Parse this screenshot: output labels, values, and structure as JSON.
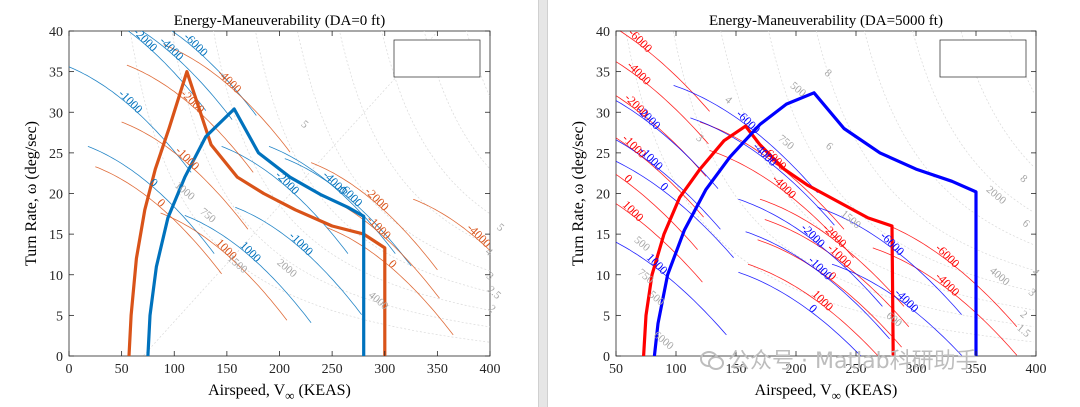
{
  "chart_data": [
    {
      "type": "line",
      "title": "Energy-Maneuverability (DA=0 ft)",
      "xlabel": "Airspeed, V",
      "xlabel_sub": "∞",
      "xlabel_unit": " (KEAS)",
      "ylabel": "Turn Rate, ω (deg/sec)",
      "xlim": [
        0,
        400
      ],
      "ylim": [
        0,
        40
      ],
      "xticks": [
        0,
        50,
        100,
        150,
        200,
        250,
        300,
        350,
        400
      ],
      "yticks": [
        0,
        5,
        10,
        15,
        20,
        25,
        30,
        35,
        40
      ],
      "legend": "top-right (empty box)",
      "envelopes": [
        {
          "name": "envelope-orange",
          "color": "#d95319",
          "points": [
            [
              57,
              0
            ],
            [
              59,
              5
            ],
            [
              64,
              12
            ],
            [
              72,
              18
            ],
            [
              82,
              23
            ],
            [
              95,
              28
            ],
            [
              112,
              35
            ],
            [
              135,
              26
            ],
            [
              160,
              22
            ],
            [
              185,
              20
            ],
            [
              215,
              18
            ],
            [
              250,
              16
            ],
            [
              280,
              15
            ],
            [
              300,
              13.3
            ],
            [
              300,
              0
            ]
          ]
        },
        {
          "name": "envelope-blue",
          "color": "#0072bd",
          "points": [
            [
              75,
              0
            ],
            [
              77,
              5
            ],
            [
              83,
              11
            ],
            [
              94,
              17
            ],
            [
              110,
              22
            ],
            [
              130,
              27
            ],
            [
              157,
              30.4
            ],
            [
              180,
              25
            ],
            [
              210,
              22
            ],
            [
              240,
              19.8
            ],
            [
              265,
              18.3
            ],
            [
              280,
              17.2
            ],
            [
              280,
              0
            ]
          ]
        }
      ],
      "ps_contours": [
        {
          "color": "#0072bd",
          "label": "-2000",
          "lx": 70,
          "ly": 38.6
        },
        {
          "color": "#0072bd",
          "label": "-4000",
          "lx": 95,
          "ly": 37.5
        },
        {
          "color": "#0072bd",
          "label": "-6000",
          "lx": 118,
          "ly": 38
        },
        {
          "color": "#0072bd",
          "label": "-1000",
          "lx": 56,
          "ly": 31
        },
        {
          "color": "#0072bd",
          "label": "0",
          "lx": 78,
          "ly": 21
        },
        {
          "color": "#0072bd",
          "label": "-2000",
          "lx": 205,
          "ly": 21
        },
        {
          "color": "#0072bd",
          "label": "-4000",
          "lx": 250,
          "ly": 21
        },
        {
          "color": "#0072bd",
          "label": "-6000",
          "lx": 265,
          "ly": 19.5
        },
        {
          "color": "#0072bd",
          "label": "-1000",
          "lx": 218,
          "ly": 13.5
        },
        {
          "color": "#0072bd",
          "label": "1000",
          "lx": 170,
          "ly": 12.5
        },
        {
          "color": "#d95319",
          "label": "-2000",
          "lx": 115,
          "ly": 31
        },
        {
          "color": "#d95319",
          "label": "-4000",
          "lx": 150,
          "ly": 33.5
        },
        {
          "color": "#d95319",
          "label": "-1000",
          "lx": 110,
          "ly": 24
        },
        {
          "color": "#d95319",
          "label": "0",
          "lx": 85,
          "ly": 18.5
        },
        {
          "color": "#d95319",
          "label": "-2000",
          "lx": 290,
          "ly": 19
        },
        {
          "color": "#d95319",
          "label": "-1000",
          "lx": 292,
          "ly": 15.5
        },
        {
          "color": "#d95319",
          "label": "-4000",
          "lx": 387,
          "ly": 14.5
        },
        {
          "color": "#d95319",
          "label": "1000",
          "lx": 147,
          "ly": 12.8
        },
        {
          "color": "#d95319",
          "label": "0",
          "lx": 305,
          "ly": 11
        }
      ],
      "gray_labels": [
        {
          "label": "5",
          "lx": 222,
          "ly": 28.2
        },
        {
          "label": "750",
          "lx": 130,
          "ly": 17
        },
        {
          "label": "1500",
          "lx": 158,
          "ly": 11
        },
        {
          "label": "2000",
          "lx": 205,
          "ly": 10.5
        },
        {
          "label": "4000",
          "lx": 292,
          "ly": 6.5
        },
        {
          "label": "5",
          "lx": 408,
          "ly": 15.5
        },
        {
          "label": "4",
          "lx": 397,
          "ly": 12.5
        },
        {
          "label": "3",
          "lx": 398,
          "ly": 9.5
        },
        {
          "label": "2.5",
          "lx": 402,
          "ly": 7.5
        },
        {
          "label": "2",
          "lx": 400,
          "ly": 5.5
        },
        {
          "label": "1000",
          "lx": 108,
          "ly": 20
        }
      ]
    },
    {
      "type": "line",
      "title": "Energy-Maneuverability (DA=5000 ft)",
      "xlabel": "Airspeed, V",
      "xlabel_sub": "∞",
      "xlabel_unit": " (KEAS)",
      "ylabel": "Turn Rate, ω (deg/sec)",
      "xlim": [
        50,
        400
      ],
      "ylim": [
        0,
        40
      ],
      "xticks": [
        50,
        100,
        150,
        200,
        250,
        300,
        350,
        400
      ],
      "yticks": [
        0,
        5,
        10,
        15,
        20,
        25,
        30,
        35,
        40
      ],
      "legend": "top-right (empty box)",
      "envelopes": [
        {
          "name": "envelope-red",
          "color": "#ff0000",
          "points": [
            [
              73,
              0
            ],
            [
              75,
              5
            ],
            [
              80,
              10
            ],
            [
              90,
              15
            ],
            [
              103,
              19.5
            ],
            [
              120,
              23
            ],
            [
              140,
              26.5
            ],
            [
              158,
              28.3
            ],
            [
              170,
              26
            ],
            [
              190,
              23
            ],
            [
              210,
              21
            ],
            [
              235,
              19
            ],
            [
              260,
              17
            ],
            [
              280,
              16
            ],
            [
              281,
              0
            ]
          ]
        },
        {
          "name": "envelope-blue-5000",
          "color": "#0000ff",
          "points": [
            [
              82,
              0
            ],
            [
              85,
              4
            ],
            [
              93,
              10
            ],
            [
              107,
              15.5
            ],
            [
              125,
              20.5
            ],
            [
              145,
              24.5
            ],
            [
              170,
              28.5
            ],
            [
              192,
              31
            ],
            [
              215,
              32.4
            ],
            [
              240,
              28
            ],
            [
              270,
              25
            ],
            [
              300,
              23
            ],
            [
              330,
              21.5
            ],
            [
              350,
              20.2
            ],
            [
              350,
              0
            ]
          ]
        }
      ],
      "ps_contours": [
        {
          "color": "#ff0000",
          "label": "-6000",
          "lx": 68,
          "ly": 38.5
        },
        {
          "color": "#ff0000",
          "label": "-4000",
          "lx": 67,
          "ly": 34.5
        },
        {
          "color": "#ff0000",
          "label": "-2000",
          "lx": 65,
          "ly": 30.5
        },
        {
          "color": "#ff0000",
          "label": "-1000",
          "lx": 63,
          "ly": 25.5
        },
        {
          "color": "#ff0000",
          "label": "0",
          "lx": 58,
          "ly": 21.5
        },
        {
          "color": "#ff0000",
          "label": "1000",
          "lx": 62,
          "ly": 17.5
        },
        {
          "color": "#ff0000",
          "label": "-6000",
          "lx": 180,
          "ly": 24
        },
        {
          "color": "#ff0000",
          "label": "-4000",
          "lx": 188,
          "ly": 20.5
        },
        {
          "color": "#ff0000",
          "label": "-2000",
          "lx": 230,
          "ly": 14.5
        },
        {
          "color": "#ff0000",
          "label": "-1000",
          "lx": 234,
          "ly": 12
        },
        {
          "color": "#ff0000",
          "label": "0",
          "lx": 228,
          "ly": 9.5
        },
        {
          "color": "#ff0000",
          "label": "1000",
          "lx": 220,
          "ly": 6.5
        },
        {
          "color": "#ff0000",
          "label": "-6000",
          "lx": 324,
          "ly": 12
        },
        {
          "color": "#ff0000",
          "label": "-4000",
          "lx": 324,
          "ly": 8.5
        },
        {
          "color": "#0000ff",
          "label": "-6000",
          "lx": 158,
          "ly": 28.5
        },
        {
          "color": "#0000ff",
          "label": "-4000",
          "lx": 172,
          "ly": 24.5
        },
        {
          "color": "#0000ff",
          "label": "-2000",
          "lx": 75,
          "ly": 29
        },
        {
          "color": "#0000ff",
          "label": "-1000",
          "lx": 77,
          "ly": 24
        },
        {
          "color": "#0000ff",
          "label": "0",
          "lx": 88,
          "ly": 20.5
        },
        {
          "color": "#0000ff",
          "label": "-2000",
          "lx": 212,
          "ly": 14.5
        },
        {
          "color": "#0000ff",
          "label": "-1000",
          "lx": 218,
          "ly": 10.5
        },
        {
          "color": "#0000ff",
          "label": "1000",
          "lx": 82,
          "ly": 11
        },
        {
          "color": "#0000ff",
          "label": "0",
          "lx": 212,
          "ly": 5.5
        },
        {
          "color": "#0000ff",
          "label": "-6000",
          "lx": 278,
          "ly": 13.5
        },
        {
          "color": "#0000ff",
          "label": "-4000",
          "lx": 290,
          "ly": 6.5
        }
      ],
      "gray_labels": [
        {
          "label": "8",
          "lx": 225,
          "ly": 34.5
        },
        {
          "label": "500",
          "lx": 200,
          "ly": 32.5
        },
        {
          "label": "4",
          "lx": 142,
          "ly": 31.2
        },
        {
          "label": "3",
          "lx": 118,
          "ly": 26.5
        },
        {
          "label": "6",
          "lx": 226,
          "ly": 25.5
        },
        {
          "label": "750",
          "lx": 190,
          "ly": 26
        },
        {
          "label": "1500",
          "lx": 244,
          "ly": 16.5
        },
        {
          "label": "8",
          "lx": 388,
          "ly": 21.5
        },
        {
          "label": "2000",
          "lx": 365,
          "ly": 19.5
        },
        {
          "label": "6",
          "lx": 390,
          "ly": 16
        },
        {
          "label": "500",
          "lx": 70,
          "ly": 13.5
        },
        {
          "label": "750",
          "lx": 73,
          "ly": 9.5
        },
        {
          "label": "500",
          "lx": 82,
          "ly": 6.8
        },
        {
          "label": "6000",
          "lx": 88,
          "ly": 1.6
        },
        {
          "label": "600",
          "lx": 280,
          "ly": 4.2
        },
        {
          "label": "4000",
          "lx": 368,
          "ly": 9.5
        },
        {
          "label": "4",
          "lx": 398,
          "ly": 10
        },
        {
          "label": "3",
          "lx": 395,
          "ly": 7.5
        },
        {
          "label": "2",
          "lx": 388,
          "ly": 4.8
        },
        {
          "label": "1.5",
          "lx": 388,
          "ly": 2.8
        }
      ]
    }
  ],
  "watermark": {
    "text": "公众号 · Matlab科研助手"
  }
}
